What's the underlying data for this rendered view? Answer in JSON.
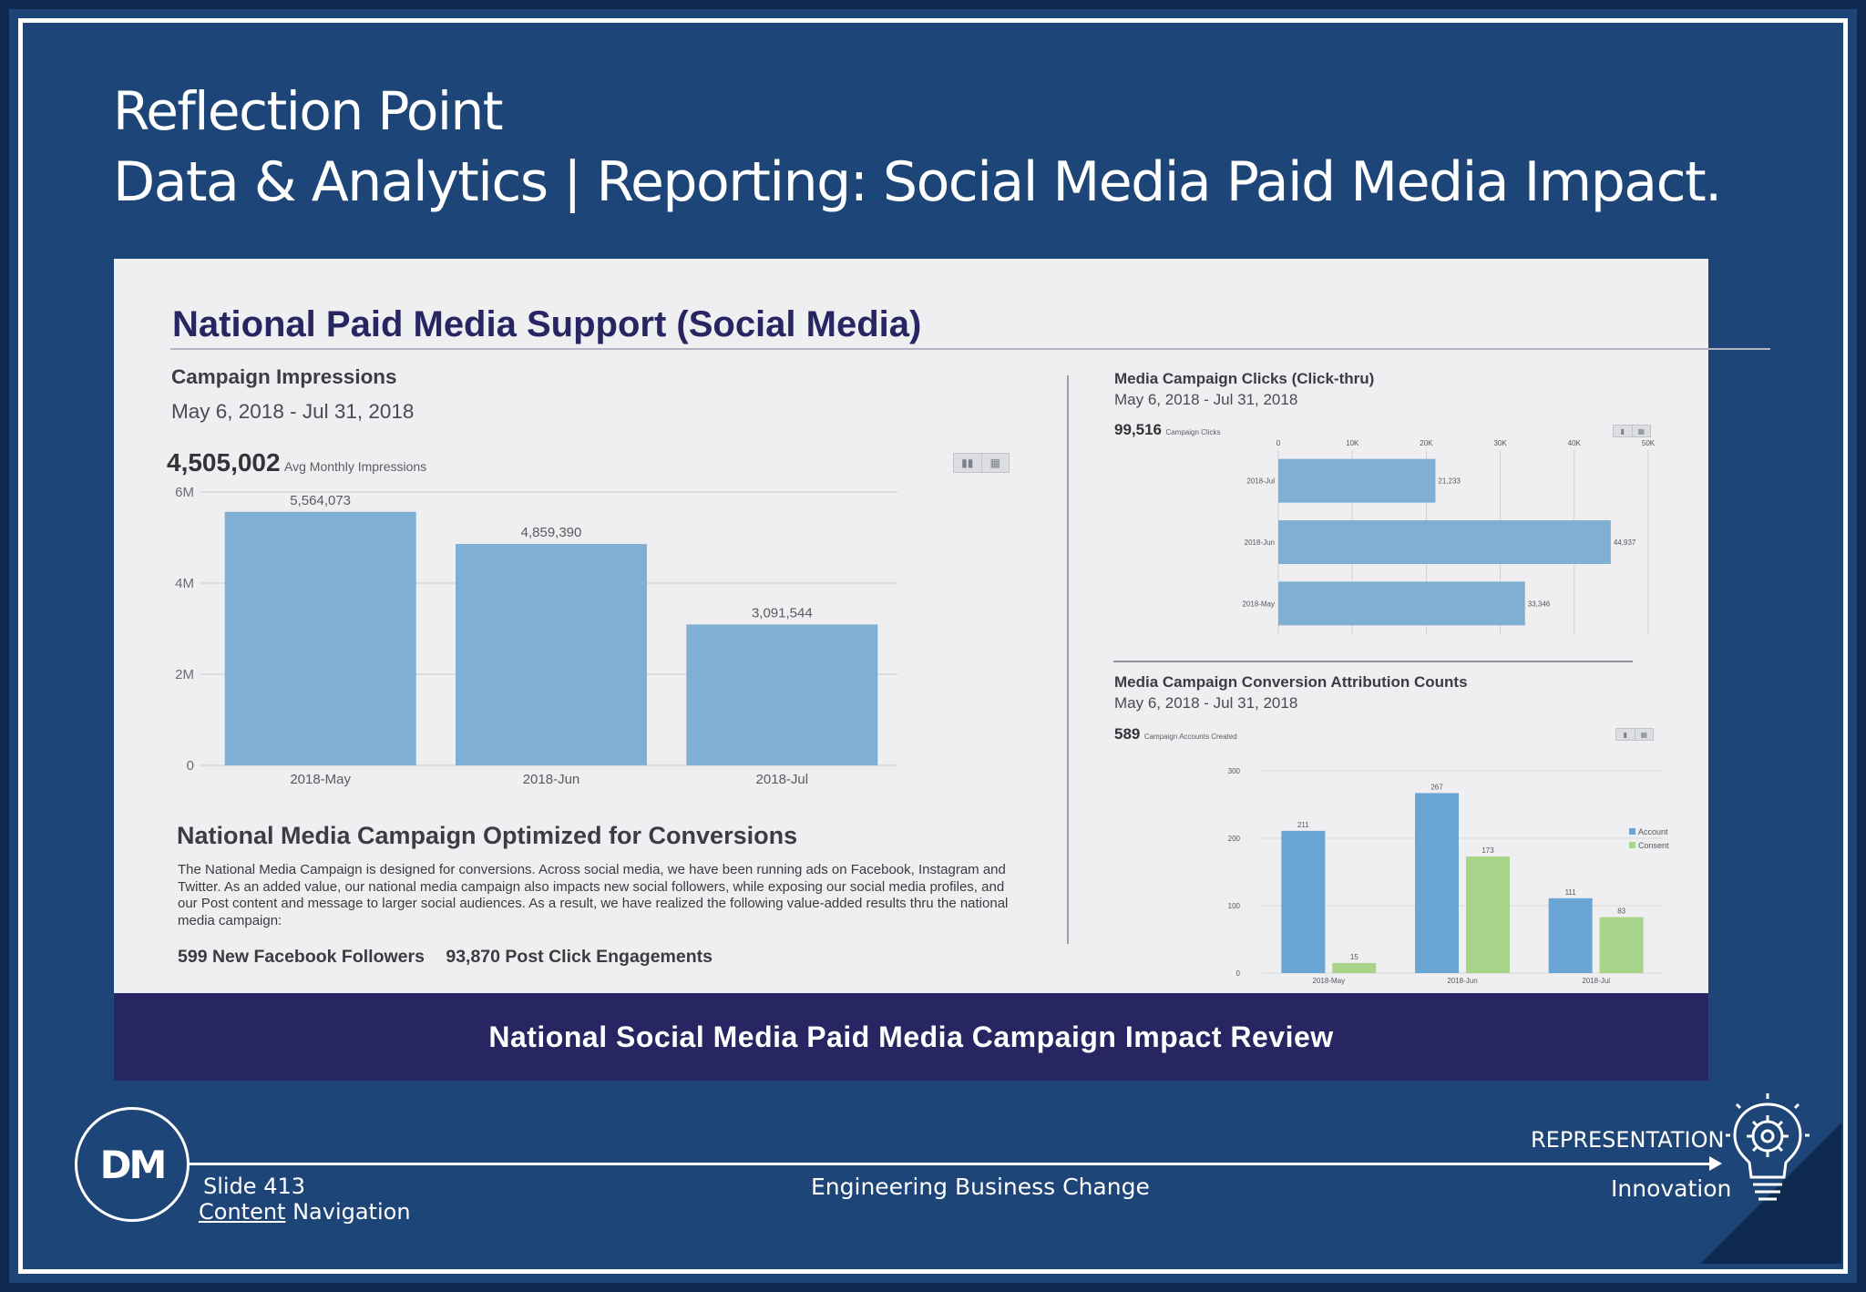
{
  "header": {
    "title_line1": "Reflection Point",
    "title_line2": "Data & Analytics | Reporting: Social Media Paid Media Impact."
  },
  "panel": {
    "title": "National Paid Media Support (Social Media)",
    "impressions": {
      "title": "Campaign Impressions",
      "date": "May 6, 2018 - Jul 31, 2018",
      "metric_value": "4,505,002",
      "metric_label": "Avg Monthly Impressions"
    },
    "clicks": {
      "title": "Media Campaign Clicks (Click-thru)",
      "date": "May 6, 2018 - Jul 31, 2018",
      "metric_value": "99,516",
      "metric_label": "Campaign Clicks"
    },
    "conversions": {
      "title": "Media Campaign Conversion Attribution Counts",
      "date": "May 6, 2018 - Jul 31, 2018",
      "metric_value": "589",
      "metric_label": "Campaign Accounts Created"
    },
    "optimized": {
      "title": "National Media Campaign Optimized for Conversions",
      "body": "The National Media Campaign is designed for conversions.  Across social media, we have been running ads on Facebook, Instagram and Twitter.  As an added value, our national media campaign also impacts new social followers, while exposing our social media profiles, and our Post content and message to larger social audiences.  As a result, we have realized the following value-added results thru the national media campaign:",
      "stat1": "599 New Facebook Followers",
      "stat2": "93,870 Post Click Engagements"
    },
    "toggle_icons": [
      "bar-chart-icon",
      "table-icon"
    ]
  },
  "caption": "National Social Media Paid Media Campaign Impact Review",
  "footer": {
    "logo_text": "DM",
    "slide": "Slide 413",
    "nav_link": "Content",
    "nav_rest": " Navigation",
    "center": "Engineering Business Change",
    "right_top": "REPRESENTATION",
    "right_bottom": "Innovation",
    "icon": "lightbulb-gear-icon"
  },
  "chart_data": [
    {
      "type": "bar",
      "categories": [
        "2018-May",
        "2018-Jun",
        "2018-Jul"
      ],
      "values": [
        5564073,
        4859390,
        3091544
      ],
      "value_labels": [
        "5,564,073",
        "4,859,390",
        "3,091,544"
      ],
      "ylim": [
        0,
        6000000
      ],
      "yticks": [
        0,
        2000000,
        4000000,
        6000000
      ],
      "ytick_labels": [
        "0",
        "2M",
        "4M",
        "6M"
      ],
      "grid": true,
      "color": "#7fb0d4"
    },
    {
      "type": "bar",
      "orientation": "horizontal",
      "categories": [
        "2018-Jul",
        "2018-Jun",
        "2018-May"
      ],
      "values": [
        21233,
        44937,
        33346
      ],
      "value_labels": [
        "21,233",
        "44,937",
        "33,346"
      ],
      "xlim": [
        0,
        50000
      ],
      "xticks": [
        0,
        10000,
        20000,
        30000,
        40000,
        50000
      ],
      "xtick_labels": [
        "0",
        "10K",
        "20K",
        "30K",
        "40K",
        "50K"
      ],
      "grid": true,
      "color": "#7fb0d4"
    },
    {
      "type": "bar",
      "categories": [
        "2018-May",
        "2018-Jun",
        "2018-Jul"
      ],
      "series": [
        {
          "name": "Account",
          "values": [
            211,
            267,
            111
          ],
          "color": "#6ba5d4"
        },
        {
          "name": "Consent",
          "values": [
            15,
            173,
            83
          ],
          "color": "#a7d488"
        }
      ],
      "ylim": [
        0,
        300
      ],
      "yticks": [
        0,
        100,
        200,
        300
      ],
      "ytick_labels": [
        "0",
        "100",
        "200",
        "300"
      ],
      "grid": true,
      "legend": "right"
    }
  ]
}
